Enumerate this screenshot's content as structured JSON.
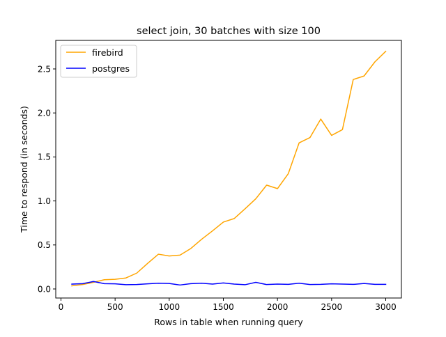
{
  "chart_data": {
    "type": "line",
    "title": "select join, 30 batches with size 100",
    "xlabel": "Rows in table when running query",
    "ylabel": "Time to respond (in seconds)",
    "xlim": [
      0,
      3000
    ],
    "ylim": [
      0,
      2.5
    ],
    "x_ticks": [
      0,
      500,
      1000,
      1500,
      2000,
      2500,
      3000
    ],
    "y_ticks": [
      0.0,
      0.5,
      1.0,
      1.5,
      2.0,
      2.5
    ],
    "x_tick_labels": [
      "0",
      "500",
      "1000",
      "1500",
      "2000",
      "2500",
      "3000"
    ],
    "y_tick_labels": [
      "0.0",
      "0.5",
      "1.0",
      "1.5",
      "2.0",
      "2.5"
    ],
    "grid": false,
    "legend_position": "top-left",
    "x": [
      100,
      200,
      300,
      400,
      500,
      600,
      700,
      800,
      900,
      1000,
      1100,
      1200,
      1300,
      1400,
      1500,
      1600,
      1700,
      1800,
      1900,
      2000,
      2100,
      2200,
      2300,
      2400,
      2500,
      2600,
      2700,
      2800,
      2900,
      3000
    ],
    "series": [
      {
        "name": "firebird",
        "color": "#ffa500",
        "values": [
          0.035,
          0.05,
          0.075,
          0.105,
          0.11,
          0.125,
          0.18,
          0.29,
          0.395,
          0.375,
          0.385,
          0.46,
          0.565,
          0.66,
          0.76,
          0.8,
          0.91,
          1.025,
          1.18,
          1.14,
          1.31,
          1.66,
          1.72,
          1.93,
          1.745,
          1.81,
          2.38,
          2.42,
          2.58,
          2.7
        ]
      },
      {
        "name": "postgres",
        "color": "#0000ff",
        "values": [
          0.055,
          0.06,
          0.085,
          0.06,
          0.058,
          0.048,
          0.05,
          0.058,
          0.065,
          0.062,
          0.045,
          0.06,
          0.065,
          0.055,
          0.068,
          0.055,
          0.048,
          0.075,
          0.05,
          0.055,
          0.052,
          0.065,
          0.05,
          0.052,
          0.058,
          0.055,
          0.052,
          0.062,
          0.052,
          0.052
        ]
      }
    ]
  }
}
